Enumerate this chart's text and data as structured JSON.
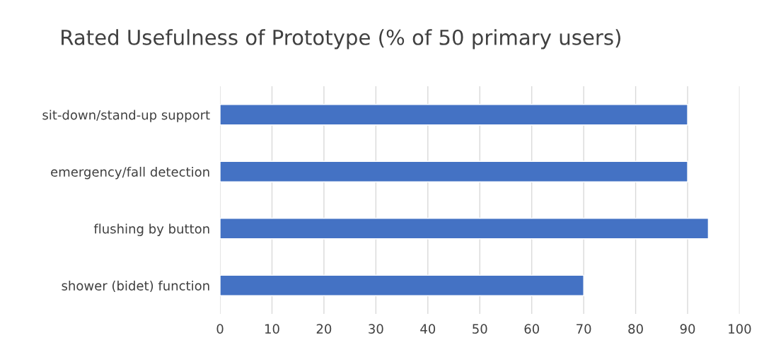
{
  "chart_data": {
    "type": "bar",
    "orientation": "horizontal",
    "title": "Rated Usefulness of Prototype (% of 50 primary users)",
    "categories": [
      "sit-down/stand-up support",
      "emergency/fall detection",
      "flushing by button",
      "shower (bidet) function"
    ],
    "values": [
      90,
      90,
      94,
      70
    ],
    "color": "#4472c4",
    "xlim": [
      0,
      100
    ],
    "xticks": [
      0,
      10,
      20,
      30,
      40,
      50,
      60,
      70,
      80,
      90,
      100
    ],
    "grid": "x",
    "legend": false
  }
}
